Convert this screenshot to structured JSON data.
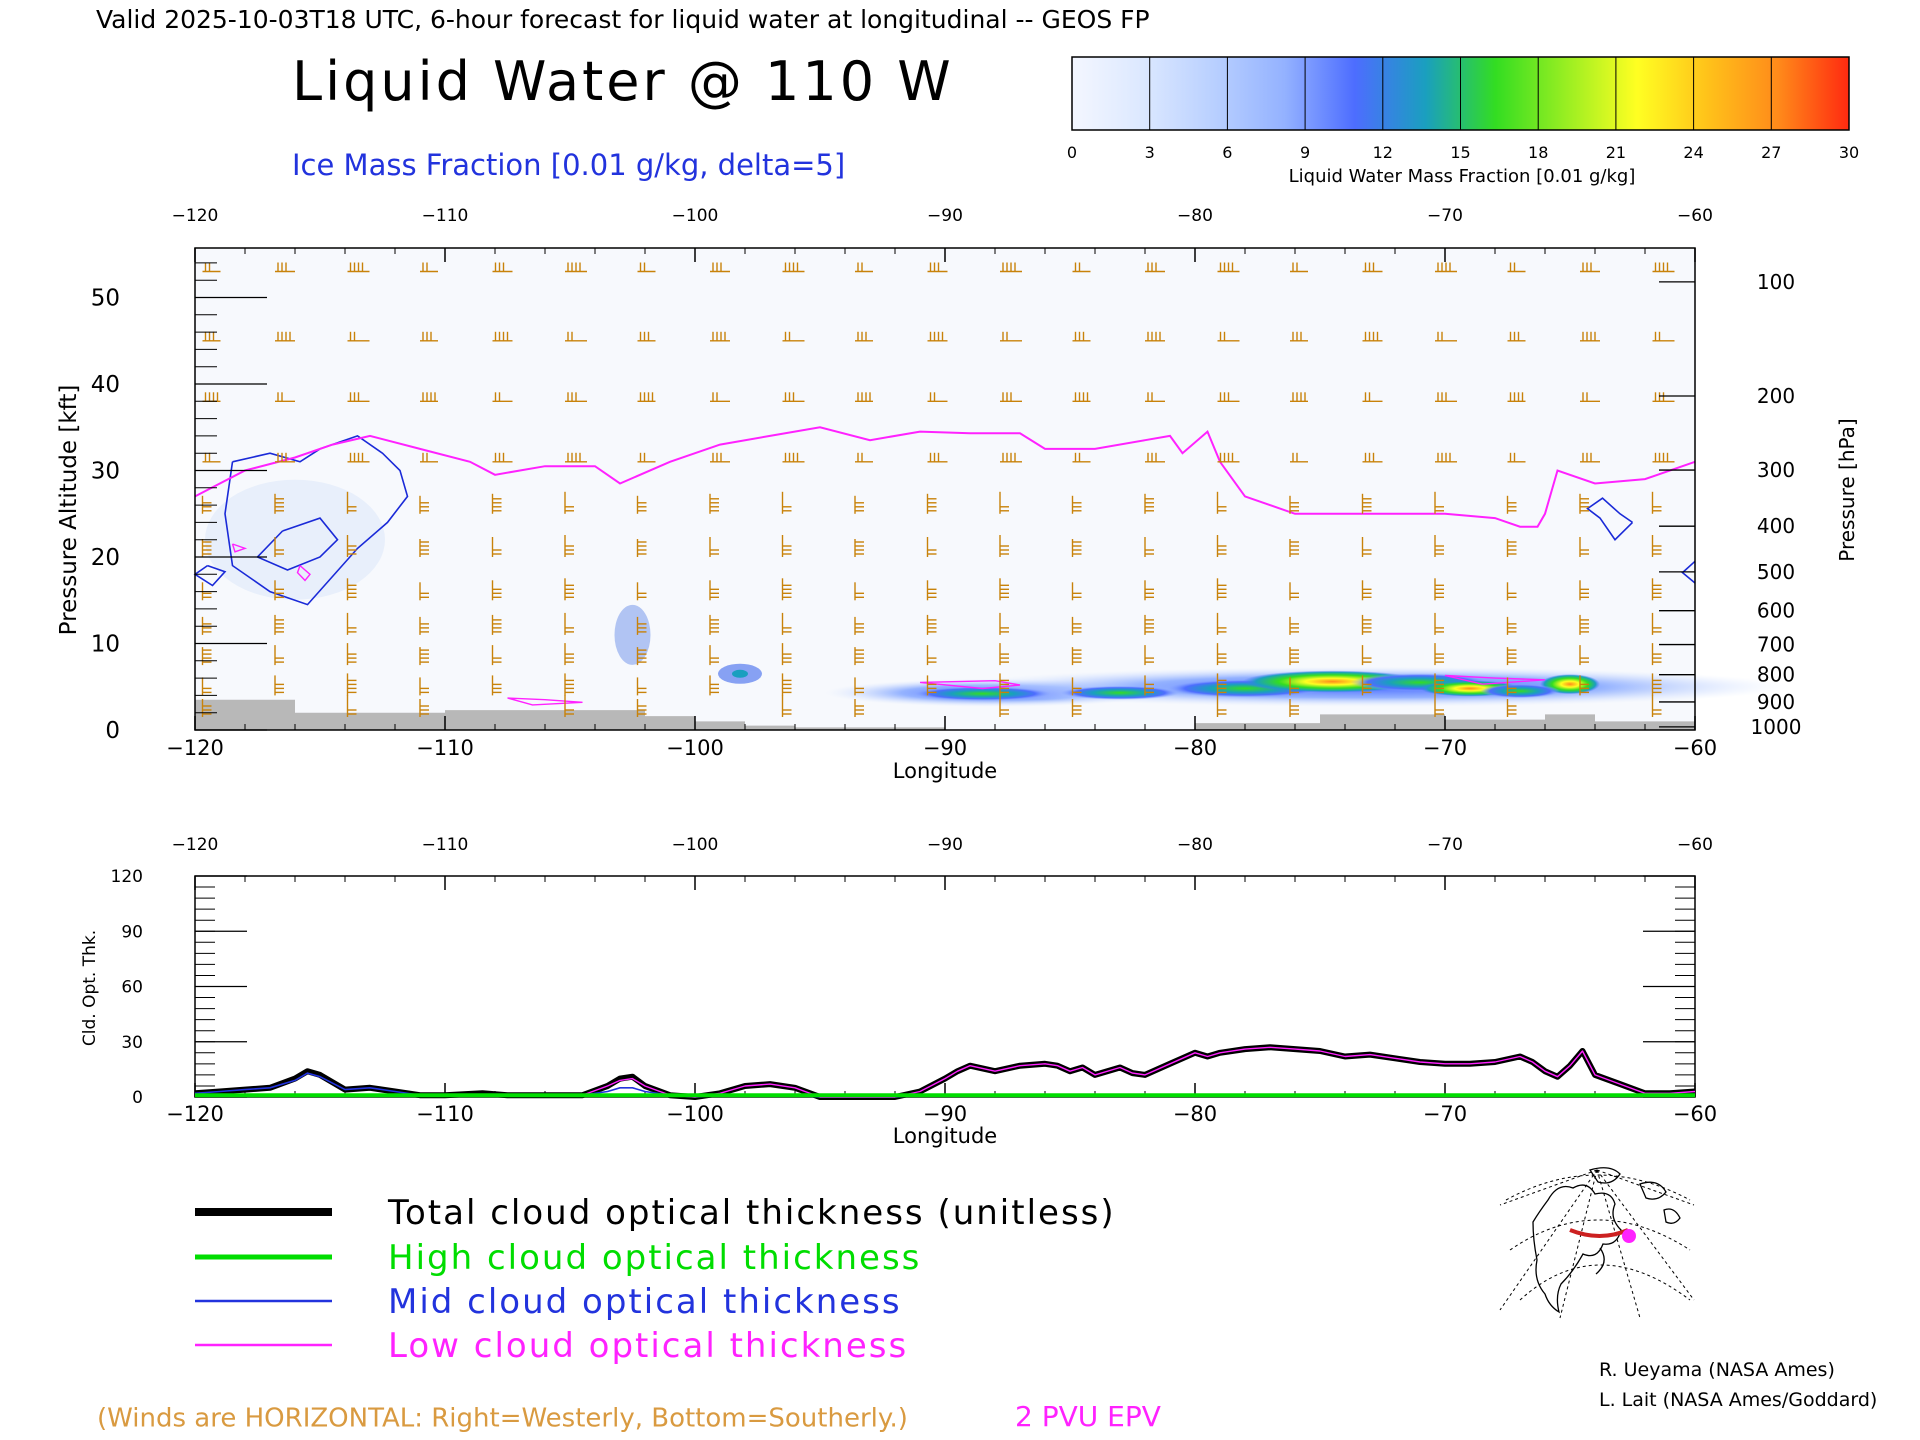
{
  "header": {
    "valid_line": "Valid 2025-10-03T18 UTC, 6-hour forecast for liquid water at longitudinal -- GEOS FP",
    "title": "Liquid Water @ 110 W",
    "subtitle": "Ice Mass Fraction [0.01 g/kg, delta=5]"
  },
  "colorbar": {
    "label": "Liquid Water Mass Fraction [0.01 g/kg]",
    "ticks": [
      "0",
      "3",
      "6",
      "9",
      "12",
      "15",
      "18",
      "21",
      "24",
      "27",
      "30"
    ],
    "colors": [
      "#f4f7ff",
      "#dce8ff",
      "#b9d0ff",
      "#94b2ff",
      "#4d6dff",
      "#1a9fbf",
      "#33dd22",
      "#99ee22",
      "#ffff22",
      "#ffc21a",
      "#ff8a1a",
      "#ff2a10"
    ]
  },
  "legend": {
    "total": "Total cloud optical thickness (unitless)",
    "high": "High cloud optical thickness",
    "mid": "Mid cloud optical thickness",
    "low": "Low cloud optical thickness"
  },
  "footer": {
    "winds_note": "(Winds are HORIZONTAL: Right=Westerly, Bottom=Southerly.)",
    "epv_note": "2 PVU EPV",
    "credit1": "R. Ueyama (NASA Ames)",
    "credit2": "L. Lait (NASA Ames/Goddard)"
  },
  "colors": {
    "wind": "#c8820a",
    "ice": "#1a2ad8",
    "epv": "#ff22ff",
    "total": "#000000",
    "high": "#00dd00",
    "mid": "#2233dd",
    "low": "#ff22ff",
    "terrain": "#b8b8b8"
  },
  "chart_data": [
    {
      "type": "heatmap",
      "title": "Liquid Water @ 110 W",
      "xlabel": "Longitude",
      "ylabel": "Pressure Altitude [kft]",
      "y2label": "Pressure [hPa]",
      "xlim": [
        -120,
        -60
      ],
      "ylim": [
        0,
        55
      ],
      "x_ticks": [
        -120,
        -110,
        -100,
        -90,
        -80,
        -70,
        -60
      ],
      "y_ticks": [
        0,
        10,
        20,
        30,
        40,
        50
      ],
      "pressure_ticks": [
        100,
        200,
        300,
        400,
        500,
        600,
        700,
        800,
        900,
        1000
      ],
      "epv_2pvu_kft": {
        "lon": [
          -120,
          -118,
          -116,
          -114.5,
          -113,
          -111,
          -109,
          -108,
          -106,
          -104,
          -103,
          -101,
          -99,
          -97,
          -95,
          -93,
          -91,
          -89,
          -87,
          -86,
          -84,
          -82,
          -81,
          -80.5,
          -79.5,
          -79,
          -78,
          -76,
          -74,
          -72,
          -70,
          -68,
          -67,
          -66.3,
          -66,
          -65.5,
          -64,
          -62,
          -60
        ],
        "kft": [
          27,
          30,
          31.5,
          33,
          34,
          32.5,
          31,
          29.5,
          30.5,
          30.5,
          28.5,
          31,
          33,
          34,
          35,
          33.5,
          34.5,
          34.3,
          34.3,
          32.5,
          32.5,
          33.5,
          34,
          32,
          34.5,
          31,
          27,
          25,
          25,
          25,
          25,
          24.5,
          23.5,
          23.5,
          25,
          30,
          28.5,
          29,
          31
        ]
      },
      "liquid_water_max": 30
    },
    {
      "type": "line",
      "xlabel": "Longitude",
      "ylabel": "Cld. Opt. Thk.",
      "xlim": [
        -120,
        -60
      ],
      "ylim": [
        0,
        120
      ],
      "x_ticks": [
        -120,
        -110,
        -100,
        -90,
        -80,
        -70,
        -60
      ],
      "y_ticks": [
        0,
        30,
        60,
        90,
        120
      ],
      "x": [
        -120,
        -119,
        -118,
        -117,
        -116,
        -115.5,
        -115,
        -114,
        -113,
        -112,
        -111,
        -110,
        -108.5,
        -107.5,
        -106,
        -104.5,
        -103.5,
        -103,
        -102.5,
        -102,
        -101,
        -100,
        -99,
        -98,
        -97,
        -96,
        -95,
        -94,
        -93,
        -92,
        -91,
        -90,
        -89.5,
        -89,
        -88,
        -87,
        -86,
        -85.5,
        -85,
        -84.5,
        -84,
        -83,
        -82.5,
        -82,
        -81,
        -80,
        -79.5,
        -79,
        -78,
        -77,
        -76,
        -75,
        -74,
        -73,
        -72,
        -71,
        -70,
        -69,
        -68,
        -67,
        -66.5,
        -66,
        -65.5,
        -65,
        -64.5,
        -64,
        -63,
        -62,
        -61,
        -60
      ],
      "series": [
        {
          "name": "Total cloud optical thickness (unitless)",
          "values": [
            2,
            3,
            4,
            5,
            10,
            14,
            12,
            4,
            5,
            3,
            1,
            1,
            2,
            1,
            1,
            1,
            6,
            10,
            11,
            6,
            1,
            0,
            2,
            6,
            7,
            5,
            0,
            0,
            0,
            0,
            3,
            10,
            14,
            17,
            14,
            17,
            18,
            17,
            14,
            16,
            12,
            16,
            13,
            12,
            18,
            24,
            22,
            24,
            26,
            27,
            26,
            25,
            22,
            23,
            21,
            19,
            18,
            18,
            19,
            22,
            19,
            14,
            11,
            17,
            25,
            12,
            7,
            2,
            2,
            3
          ]
        },
        {
          "name": "High cloud optical thickness",
          "values": [
            1,
            1,
            1,
            1,
            1,
            1,
            1,
            1,
            1,
            1,
            1,
            1,
            1,
            1,
            1,
            1,
            1,
            1,
            1,
            1,
            1,
            1,
            1,
            1,
            1,
            1,
            1,
            1,
            1,
            1,
            1,
            1,
            1,
            1,
            1,
            1,
            1,
            1,
            1,
            1,
            1,
            1,
            1,
            1,
            1,
            1,
            1,
            1,
            1,
            1,
            1,
            1,
            1,
            1,
            1,
            1,
            1,
            1,
            1,
            1,
            1,
            1,
            1,
            1,
            1,
            1,
            1,
            1,
            1,
            1
          ]
        },
        {
          "name": "Mid cloud optical thickness",
          "values": [
            2,
            3,
            4,
            5,
            9,
            13,
            11,
            4,
            5,
            3,
            1,
            1,
            1,
            1,
            1,
            1,
            3,
            5,
            5,
            3,
            1,
            0,
            1,
            1,
            1,
            1,
            0,
            0,
            0,
            0,
            1,
            1,
            1,
            1,
            1,
            1,
            1,
            1,
            1,
            1,
            1,
            1,
            1,
            1,
            1,
            1,
            1,
            1,
            1,
            1,
            1,
            1,
            1,
            1,
            1,
            1,
            1,
            1,
            1,
            1,
            1,
            1,
            1,
            1,
            1,
            1,
            1,
            1,
            1,
            1
          ]
        },
        {
          "name": "Low cloud optical thickness",
          "values": [
            1,
            1,
            1,
            1,
            1,
            1,
            1,
            1,
            1,
            1,
            1,
            1,
            1,
            1,
            1,
            1,
            6,
            9,
            10,
            6,
            1,
            0,
            2,
            6,
            7,
            5,
            0,
            0,
            0,
            0,
            3,
            10,
            14,
            17,
            14,
            17,
            18,
            17,
            14,
            16,
            12,
            16,
            13,
            12,
            18,
            24,
            22,
            24,
            26,
            27,
            26,
            25,
            22,
            23,
            21,
            19,
            18,
            18,
            19,
            22,
            19,
            14,
            11,
            17,
            25,
            12,
            7,
            2,
            2,
            3
          ]
        }
      ]
    }
  ]
}
